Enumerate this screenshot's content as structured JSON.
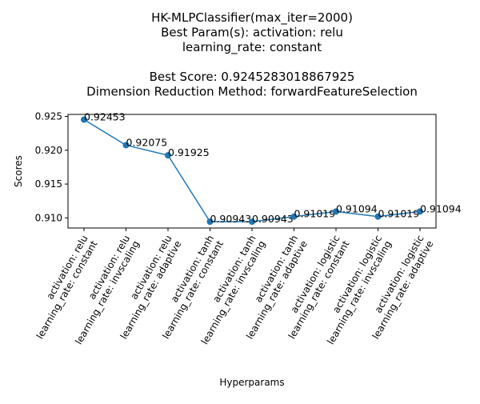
{
  "chart_data": {
    "type": "line",
    "title_lines": [
      "HK-MLPClassifier(max_iter=2000)",
      "Best Param(s): activation: relu",
      "learning_rate: constant",
      "",
      "Best Score: 0.9245283018867925",
      "Dimension Reduction Method: forwardFeatureSelection"
    ],
    "xlabel": "Hyperparams",
    "ylabel": "Scores",
    "categories": [
      [
        "activation: relu",
        "learning_rate: constant"
      ],
      [
        "activation: relu",
        "learning_rate: invscaling"
      ],
      [
        "activation: relu",
        "learning_rate: adaptive"
      ],
      [
        "activation: tanh",
        "learning_rate: constant"
      ],
      [
        "activation: tanh",
        "learning_rate: invscaling"
      ],
      [
        "activation: tanh",
        "learning_rate: adaptive"
      ],
      [
        "activation: logistic",
        "learning_rate: constant"
      ],
      [
        "activation: logistic",
        "learning_rate: invscaling"
      ],
      [
        "activation: logistic",
        "learning_rate: adaptive"
      ]
    ],
    "values": [
      0.92453,
      0.92075,
      0.91925,
      0.90943,
      0.90943,
      0.91019,
      0.91094,
      0.91019,
      0.91094
    ],
    "data_labels": [
      "0.92453",
      "0.92075",
      "0.91925",
      "0.90943",
      "0.90943",
      "0.91019",
      "0.91094",
      "0.91019",
      "0.91094"
    ],
    "yticks": [
      "0.910",
      "0.915",
      "0.920",
      "0.925"
    ],
    "ylim": [
      0.9085,
      0.9253
    ],
    "line_color": "#1f77b4",
    "grid": false,
    "legend": "none"
  }
}
